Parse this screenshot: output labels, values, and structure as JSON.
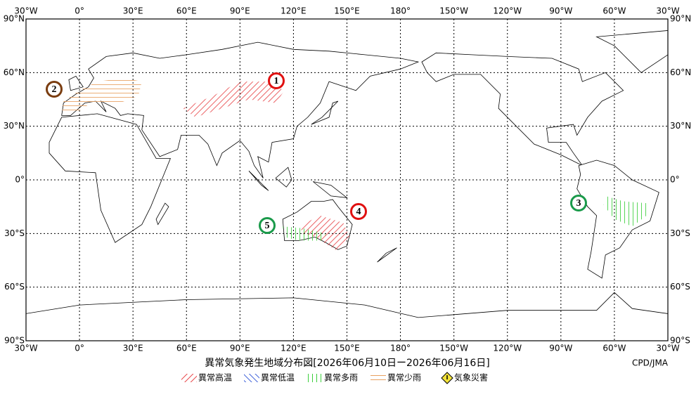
{
  "map": {
    "longitude_labels": [
      "30°W",
      "0°",
      "30°E",
      "60°E",
      "90°E",
      "120°E",
      "150°E",
      "180°",
      "150°W",
      "120°W",
      "90°W",
      "60°W",
      "30°W"
    ],
    "latitude_labels": [
      "90°N",
      "60°N",
      "30°N",
      "0°",
      "30°S",
      "60°S",
      "90°S"
    ],
    "title": "異常気象発生地域分布図[2026年06月10日ー2026年06月16日]",
    "credit": "CPD/JMA",
    "legend": [
      {
        "label": "異常高温",
        "color": "#e8474a"
      },
      {
        "label": "異常低温",
        "color": "#3b5fd9"
      },
      {
        "label": "異常多雨",
        "color": "#3ccf3c"
      },
      {
        "label": "異常少雨",
        "color": "#e8a060"
      },
      {
        "label": "気象災害",
        "color": "#f2e23a"
      }
    ],
    "markers": [
      {
        "label": "1",
        "color": "#e01010"
      },
      {
        "label": "2",
        "color": "#7a3d10"
      },
      {
        "label": "3",
        "color": "#1a9a4a"
      },
      {
        "label": "4",
        "color": "#e01010"
      },
      {
        "label": "5",
        "color": "#1a9a4a"
      }
    ]
  }
}
